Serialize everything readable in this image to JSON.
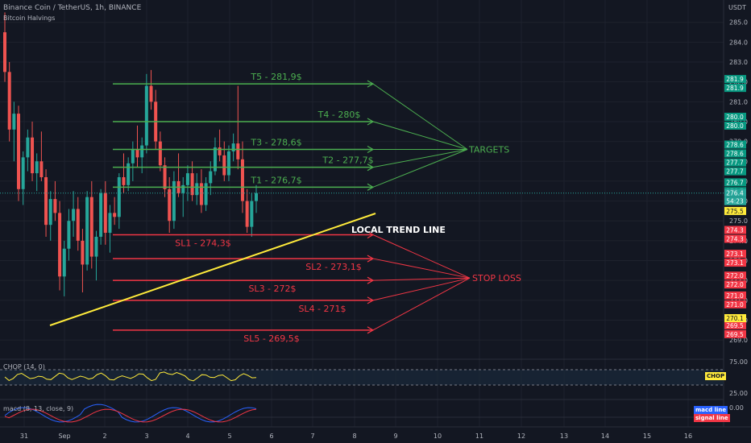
{
  "header": {
    "symbol": "Binance Coin / TetherUS, 1h, BINANCE",
    "indicator": "Bitcoin Halvings",
    "currency": "USDT"
  },
  "colors": {
    "background": "#131722",
    "up": "#26a69a",
    "down": "#ef5350",
    "target": "#4caf50",
    "stop": "#f23645",
    "trend": "#ffeb3b",
    "text": "#b2b5be"
  },
  "chart_data": {
    "type": "line",
    "y_axis": {
      "ticks": [
        "285.0",
        "284.0",
        "283.0",
        "282.0",
        "281.0",
        "280.0",
        "279.0",
        "278.0",
        "277.0",
        "276.0",
        "275.0",
        "274.0",
        "273.0",
        "272.0",
        "271.0",
        "270.0",
        "269.0"
      ],
      "range": [
        268.6,
        285.8
      ]
    },
    "x_axis": {
      "ticks": [
        "31",
        "Sep",
        "2",
        "3",
        "4",
        "5",
        "6",
        "7",
        "8",
        "9",
        "10",
        "11",
        "12",
        "13",
        "14",
        "15",
        "16"
      ]
    },
    "targets": [
      {
        "label": "T5 - 281,9$",
        "price": 281.9,
        "tag": "281.9"
      },
      {
        "label": "T4 - 280$",
        "price": 280.0,
        "tag": "280.0"
      },
      {
        "label": "T3 - 278,6$",
        "price": 278.6,
        "tag": "278.6"
      },
      {
        "label": "T2 - 277,7$",
        "price": 277.7,
        "tag": "277.7"
      },
      {
        "label": "T1 - 276,7$",
        "price": 276.7,
        "tag": "276.7"
      }
    ],
    "stops": [
      {
        "label": "SL1 - 274,3$",
        "price": 274.3,
        "tag": "274.3"
      },
      {
        "label": "SL2 - 273,1$",
        "price": 273.1,
        "tag": "273.1"
      },
      {
        "label": "SL3 - 272$",
        "price": 272.0,
        "tag": "272.0"
      },
      {
        "label": "SL4 - 271$",
        "price": 271.0,
        "tag": "271.0"
      },
      {
        "label": "SL5 - 269,5$",
        "price": 269.5,
        "tag": "269.5"
      }
    ],
    "targets_label": "TARGETS",
    "stops_label": "STOP LOSS",
    "trend_label": "LOCAL TREND LINE",
    "current_price": {
      "price": 276.4,
      "tag": "276.4",
      "countdown": "54:23"
    },
    "extra_tags": [
      {
        "price": 275.5,
        "tag": "275.5",
        "style": "yellow"
      },
      {
        "price": 270.1,
        "tag": "270.1",
        "style": "yellow"
      }
    ],
    "candles": [
      [
        284.5,
        285.5,
        282,
        282.5
      ],
      [
        282.5,
        283,
        279,
        279.6
      ],
      [
        279.6,
        281,
        278,
        280.4
      ],
      [
        280.4,
        280.8,
        276,
        276.6
      ],
      [
        276.6,
        278.5,
        275.8,
        278.2
      ],
      [
        278.2,
        279.6,
        277.5,
        279.2
      ],
      [
        279.2,
        280,
        277,
        277.4
      ],
      [
        277.4,
        278.4,
        276.5,
        278
      ],
      [
        278,
        279.5,
        277,
        277.2
      ],
      [
        277.2,
        277.6,
        274.2,
        274.8
      ],
      [
        274.8,
        276.5,
        274,
        276.1
      ],
      [
        276.1,
        277,
        275,
        275.4
      ],
      [
        275.4,
        276,
        271.5,
        272.2
      ],
      [
        272.2,
        274,
        271.2,
        273.6
      ],
      [
        273.6,
        275.6,
        273,
        275
      ],
      [
        275,
        276.5,
        274.2,
        275.6
      ],
      [
        275.6,
        276.2,
        273.5,
        274
      ],
      [
        274,
        274.6,
        271.4,
        272.8
      ],
      [
        272.8,
        276.5,
        272.5,
        276.2
      ],
      [
        276.2,
        277,
        272.6,
        273.2
      ],
      [
        273.2,
        274.5,
        272,
        274.2
      ],
      [
        274.2,
        276.6,
        273.8,
        276.4
      ],
      [
        276.4,
        277,
        273.8,
        274.4
      ],
      [
        274.4,
        275.8,
        273.4,
        275.4
      ],
      [
        275.4,
        276.2,
        274.8,
        275.2
      ],
      [
        275.2,
        277.4,
        274.6,
        277.2
      ],
      [
        277.2,
        278.4,
        276.4,
        276.8
      ],
      [
        276.8,
        278.2,
        276.5,
        277.9
      ],
      [
        277.9,
        279,
        277,
        278.6
      ],
      [
        278.6,
        279.8,
        277.7,
        278.2
      ],
      [
        278.2,
        279.2,
        277.4,
        278.8
      ],
      [
        278.8,
        282.4,
        278.4,
        281.8
      ],
      [
        281.8,
        282.6,
        280.6,
        281
      ],
      [
        281,
        281.6,
        278.6,
        279
      ],
      [
        279,
        279.5,
        277.5,
        277.8
      ],
      [
        277.8,
        278.2,
        276.2,
        276.6
      ],
      [
        276.6,
        277.2,
        274.4,
        275
      ],
      [
        275,
        277.5,
        274.6,
        277
      ],
      [
        277,
        278.4,
        276.2,
        276.4
      ],
      [
        276.4,
        277.2,
        275.2,
        276.8
      ],
      [
        276.8,
        277.8,
        276,
        277.4
      ],
      [
        277.4,
        278,
        276,
        276.3
      ],
      [
        276.3,
        277.4,
        275.8,
        276.9
      ],
      [
        276.9,
        277.6,
        275.4,
        275.8
      ],
      [
        275.8,
        277.2,
        275.5,
        276.9
      ],
      [
        276.9,
        278,
        276.3,
        277.5
      ],
      [
        277.5,
        279.2,
        277.3,
        278.7
      ],
      [
        278.7,
        279.6,
        278,
        278.3
      ],
      [
        278.3,
        279,
        277,
        277.3
      ],
      [
        277.3,
        278.8,
        277,
        278.5
      ],
      [
        278.5,
        279.4,
        278,
        278.9
      ],
      [
        278.9,
        281.8,
        277.6,
        278.1
      ],
      [
        278.1,
        279,
        275.4,
        276
      ],
      [
        276,
        276.6,
        274.4,
        274.7
      ],
      [
        274.7,
        276.4,
        274.2,
        276
      ],
      [
        276,
        276.8,
        275.4,
        276.4
      ]
    ],
    "chop_panel": {
      "name": "CHOP (14, 0)",
      "tag": "CHOP",
      "ticks": [
        "75.00",
        "25.00"
      ]
    },
    "macd_panel": {
      "name": "macd (8, 13, close, 9)",
      "tag_macd": "macd line",
      "tag_signal": "signal line",
      "ticks": [
        "0.00"
      ]
    }
  }
}
